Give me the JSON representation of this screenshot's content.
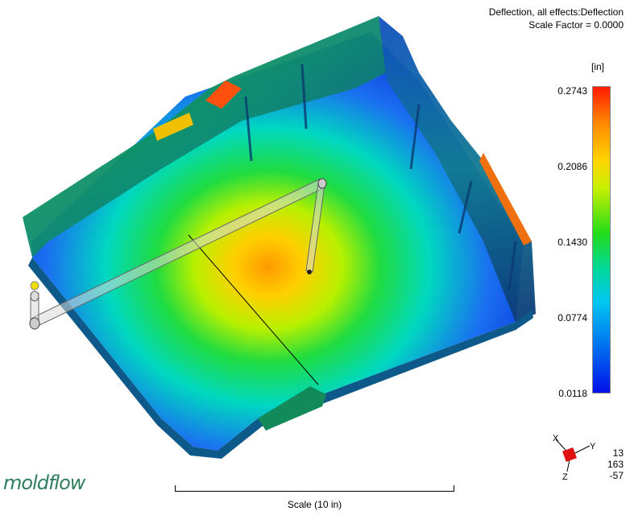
{
  "header": {
    "title": "Deflection, all effects:Deflection",
    "scale_factor": "Scale Factor =  0.0000"
  },
  "legend": {
    "unit": "[in]",
    "ticks": [
      "0.2743",
      "0.2086",
      "0.1430",
      "0.0774",
      "0.0118"
    ],
    "colors": {
      "max": "#ff1a00",
      "mid": "#22dc1a",
      "min": "#0010e8"
    }
  },
  "scale": {
    "label": "Scale (10 in)"
  },
  "logo": {
    "text": "moldflow"
  },
  "orientation": {
    "x_label": "X",
    "y_label": "Y",
    "z_label": "Z",
    "values": [
      "13",
      "163",
      "-57"
    ]
  }
}
